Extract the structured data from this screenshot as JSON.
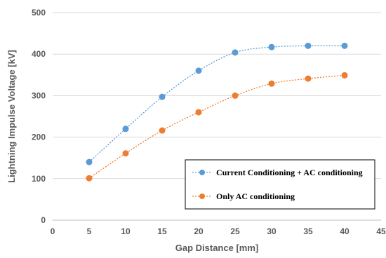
{
  "chart_data": {
    "type": "scatter",
    "title": "",
    "xlabel": "Gap Distance [mm]",
    "ylabel": "Lightning Impulse Voltage [kV]",
    "xlim": [
      0,
      45
    ],
    "ylim": [
      0,
      500
    ],
    "x_ticks": [
      "0",
      "5",
      "10",
      "15",
      "20",
      "25",
      "30",
      "35",
      "40",
      "45"
    ],
    "y_ticks": [
      "0",
      "100",
      "200",
      "300",
      "400",
      "500"
    ],
    "grid": "horizontal",
    "legend_position": "bottom-right",
    "line_style": "smooth dotted",
    "series": [
      {
        "name": "Current Conditioning + AC conditioning",
        "color": "#5B9BD5",
        "x": [
          5,
          10,
          15,
          20,
          25,
          30,
          35,
          40
        ],
        "y": [
          140,
          220,
          297,
          360,
          404,
          417,
          420,
          420
        ]
      },
      {
        "name": "Only AC conditioning",
        "color": "#ED7D31",
        "x": [
          5,
          10,
          15,
          20,
          25,
          30,
          35,
          40
        ],
        "y": [
          101,
          161,
          216,
          260,
          300,
          329,
          341,
          349
        ]
      }
    ]
  }
}
